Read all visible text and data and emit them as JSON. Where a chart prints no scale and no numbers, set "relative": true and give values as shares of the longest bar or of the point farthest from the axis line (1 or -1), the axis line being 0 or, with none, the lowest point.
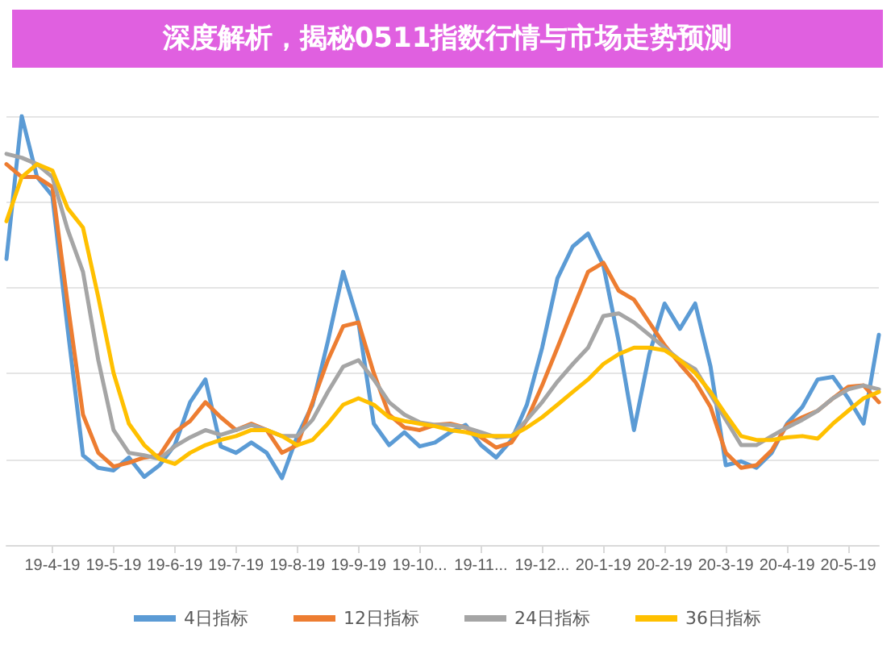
{
  "chart_data": {
    "type": "line",
    "title": "深度解析，揭秘0511指数行情与市场走势预测",
    "relative": true,
    "grid": "y",
    "legend": "bottom",
    "marker": "none",
    "line_style": "solid",
    "categories": [
      null,
      null,
      null,
      "19-4-19",
      null,
      null,
      null,
      "19-5-19",
      null,
      null,
      null,
      "19-6-19",
      null,
      null,
      null,
      "19-7-19",
      null,
      null,
      null,
      "19-8-19",
      null,
      null,
      null,
      "19-9-19",
      null,
      null,
      null,
      "19-10...",
      null,
      null,
      null,
      "19-11...",
      null,
      null,
      null,
      "19-12...",
      null,
      null,
      null,
      "20-1-19",
      null,
      null,
      null,
      "20-2-19",
      null,
      null,
      null,
      "20-3-19",
      null,
      null,
      null,
      "20-4-19",
      null,
      null,
      null,
      "20-5-19",
      null,
      null
    ],
    "series": [
      {
        "name": "4日指标",
        "color": "#5b9bd5",
        "values": [
          0.667,
          1.0,
          0.858,
          0.814,
          0.504,
          0.209,
          0.18,
          0.174,
          0.204,
          0.159,
          0.186,
          0.233,
          0.333,
          0.386,
          0.23,
          0.215,
          0.239,
          0.215,
          0.156,
          0.254,
          0.327,
          0.475,
          0.637,
          0.519,
          0.283,
          0.233,
          0.263,
          0.23,
          0.239,
          0.263,
          0.28,
          0.233,
          0.204,
          0.245,
          0.327,
          0.46,
          0.622,
          0.696,
          0.726,
          0.652,
          0.475,
          0.268,
          0.445,
          0.563,
          0.504,
          0.563,
          0.416,
          0.186,
          0.195,
          0.18,
          0.215,
          0.283,
          0.322,
          0.386,
          0.392,
          0.342,
          0.283,
          0.49
        ]
      },
      {
        "name": "12日指标",
        "color": "#ed7d31",
        "values": [
          0.888,
          0.858,
          0.858,
          0.835,
          0.563,
          0.304,
          0.215,
          0.183,
          0.192,
          0.204,
          0.209,
          0.263,
          0.289,
          0.333,
          0.298,
          0.268,
          0.283,
          0.268,
          0.215,
          0.233,
          0.333,
          0.431,
          0.51,
          0.519,
          0.401,
          0.304,
          0.274,
          0.268,
          0.28,
          0.283,
          0.274,
          0.251,
          0.227,
          0.239,
          0.292,
          0.372,
          0.46,
          0.549,
          0.637,
          0.658,
          0.593,
          0.572,
          0.519,
          0.466,
          0.422,
          0.381,
          0.322,
          0.215,
          0.18,
          0.186,
          0.221,
          0.28,
          0.298,
          0.313,
          0.342,
          0.369,
          0.372,
          0.333
        ]
      },
      {
        "name": "24日指标",
        "color": "#a5a5a5",
        "values": [
          0.912,
          0.903,
          0.888,
          0.858,
          0.735,
          0.637,
          0.431,
          0.268,
          0.215,
          0.209,
          0.201,
          0.23,
          0.251,
          0.268,
          0.257,
          0.268,
          0.28,
          0.268,
          0.254,
          0.254,
          0.292,
          0.357,
          0.416,
          0.431,
          0.386,
          0.333,
          0.304,
          0.286,
          0.28,
          0.28,
          0.274,
          0.263,
          0.251,
          0.254,
          0.292,
          0.333,
          0.381,
          0.422,
          0.46,
          0.534,
          0.54,
          0.519,
          0.49,
          0.46,
          0.431,
          0.41,
          0.351,
          0.292,
          0.233,
          0.233,
          0.254,
          0.274,
          0.292,
          0.313,
          0.342,
          0.363,
          0.372,
          0.363
        ]
      },
      {
        "name": "36日指标",
        "color": "#ffc000",
        "values": [
          0.755,
          0.858,
          0.888,
          0.873,
          0.785,
          0.74,
          0.578,
          0.401,
          0.283,
          0.233,
          0.201,
          0.189,
          0.215,
          0.233,
          0.245,
          0.254,
          0.268,
          0.268,
          0.254,
          0.233,
          0.245,
          0.283,
          0.327,
          0.342,
          0.327,
          0.298,
          0.289,
          0.283,
          0.277,
          0.268,
          0.263,
          0.254,
          0.254,
          0.254,
          0.274,
          0.298,
          0.327,
          0.357,
          0.386,
          0.422,
          0.445,
          0.46,
          0.46,
          0.454,
          0.431,
          0.401,
          0.357,
          0.304,
          0.254,
          0.245,
          0.245,
          0.251,
          0.254,
          0.248,
          0.283,
          0.313,
          0.342,
          0.357
        ]
      }
    ]
  }
}
